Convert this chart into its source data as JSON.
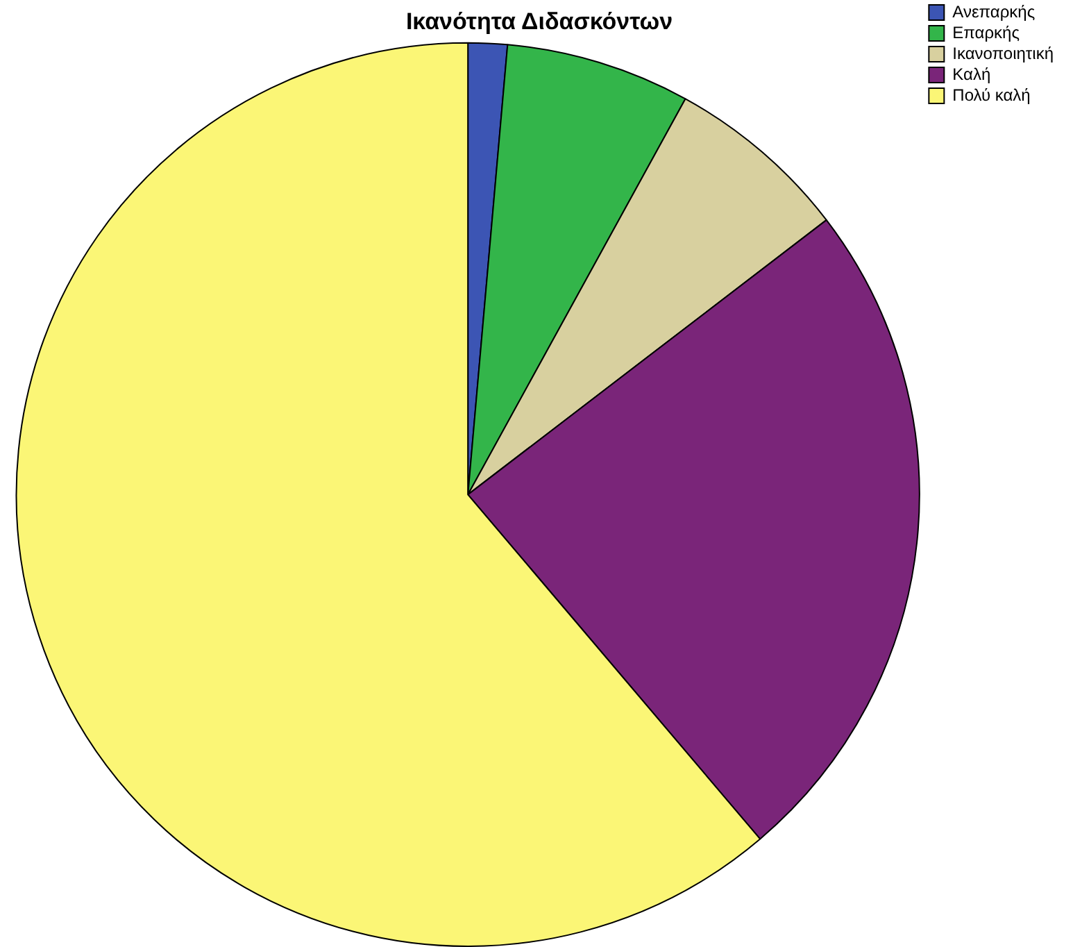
{
  "chart_data": {
    "type": "pie",
    "title": "Ικανότητα Διδασκόντων",
    "categories": [
      "Ανεπαρκής",
      "Επαρκής",
      "Ικανοποιητική",
      "Καλή",
      "Πολύ καλή"
    ],
    "values": [
      1.4,
      6.6,
      6.6,
      24.2,
      61.2
    ],
    "colors": [
      "#3c55b4",
      "#33b54a",
      "#d8d09f",
      "#7a2579",
      "#fbf676"
    ],
    "legend": "top right"
  }
}
